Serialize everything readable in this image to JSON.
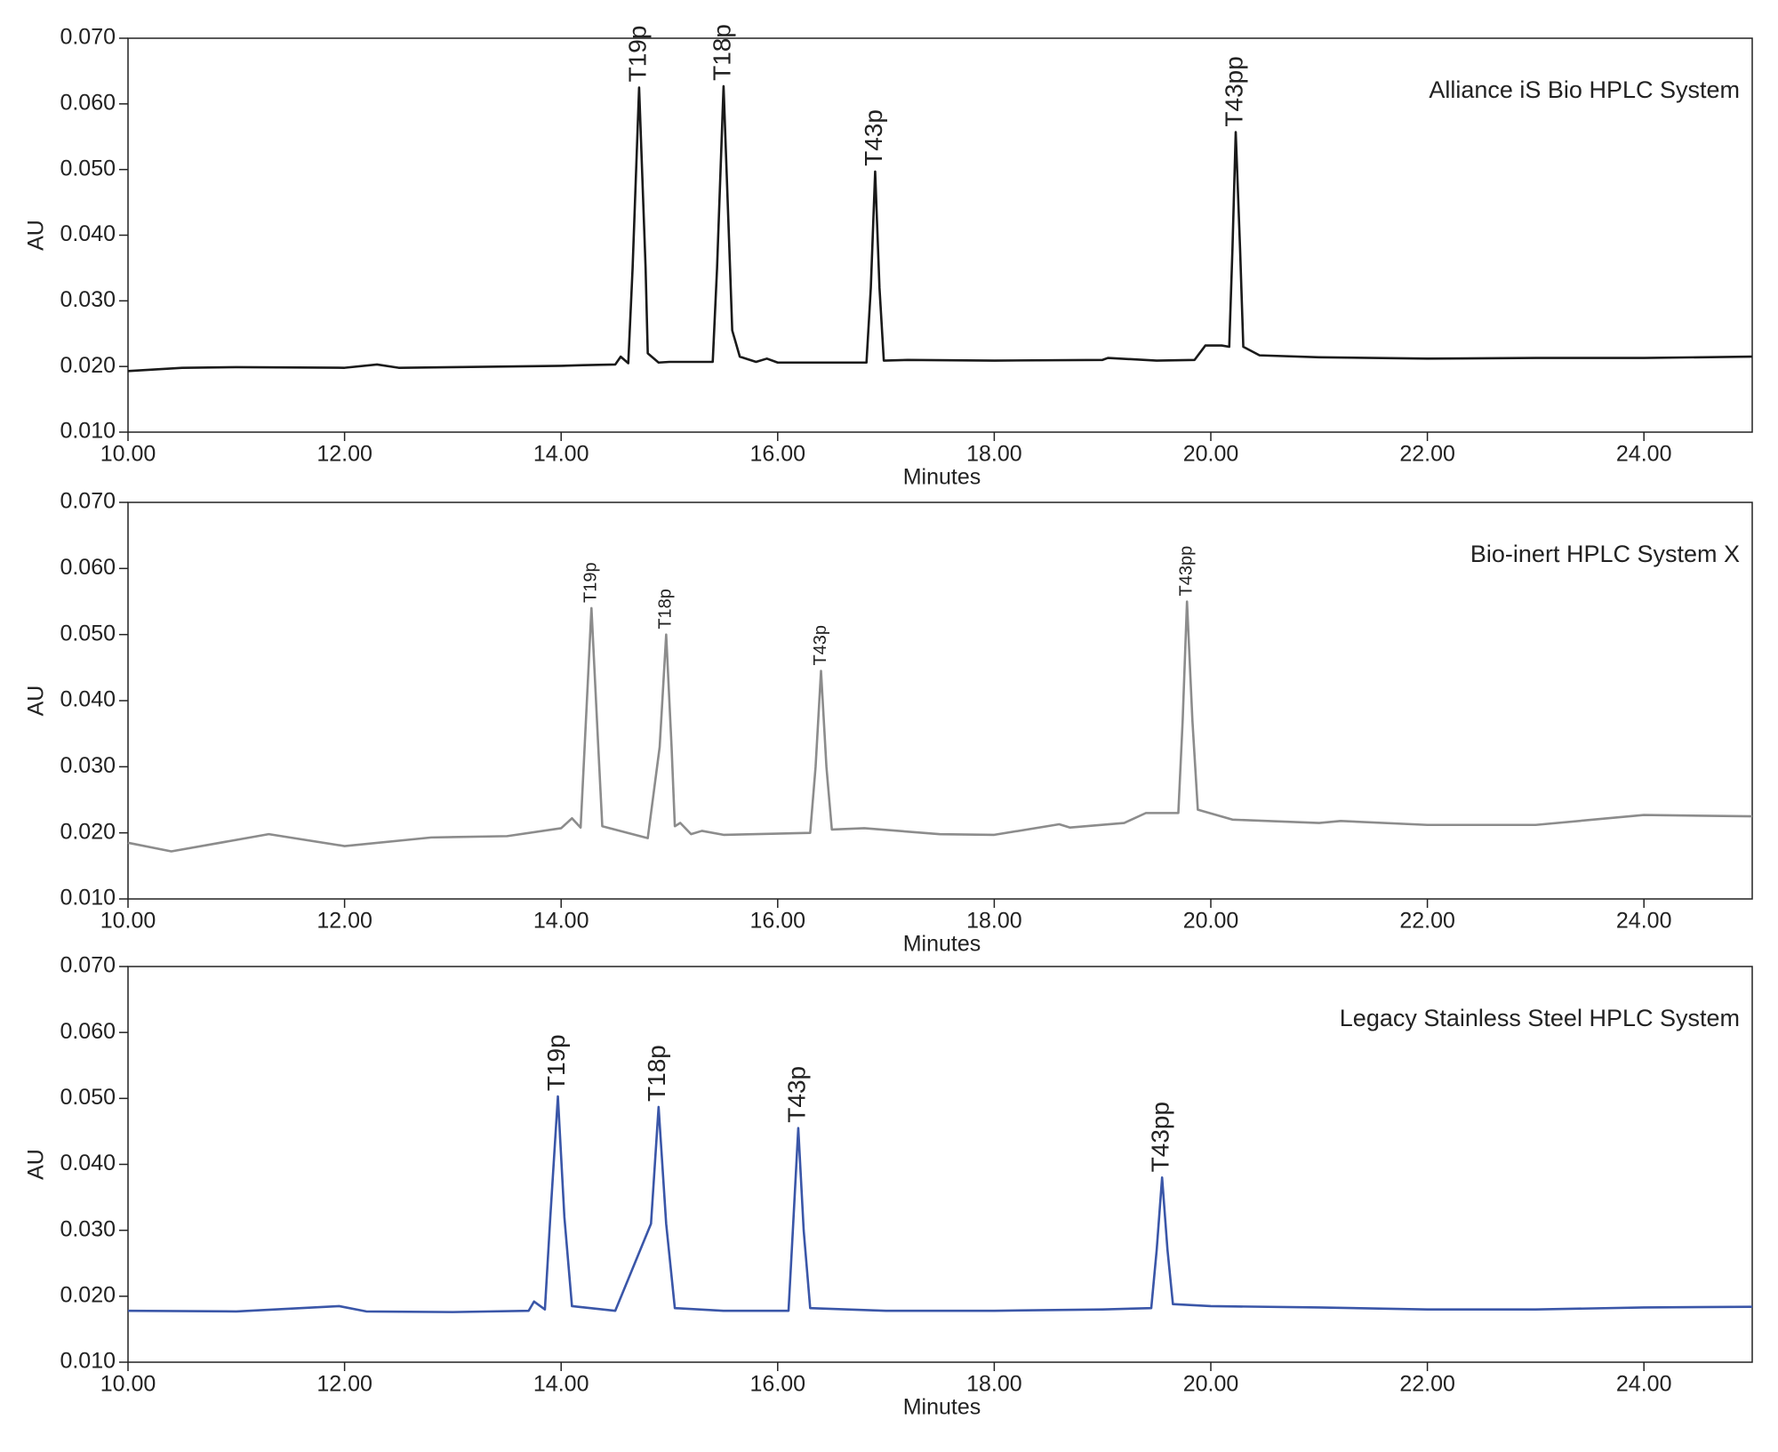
{
  "chart_data": [
    {
      "type": "line",
      "title": "Alliance iS Bio HPLC System",
      "xlabel": "Minutes",
      "ylabel": "AU",
      "color": "#1a1a1a",
      "xlim": [
        10,
        25
      ],
      "ylim": [
        0.01,
        0.07
      ],
      "xticks": [
        {
          "value": 10,
          "label": "10.00"
        },
        {
          "value": 12,
          "label": "12.00"
        },
        {
          "value": 14,
          "label": "14.00"
        },
        {
          "value": 16,
          "label": "16.00"
        },
        {
          "value": 18,
          "label": "18.00"
        },
        {
          "value": 20,
          "label": "20.00"
        },
        {
          "value": 22,
          "label": "22.00"
        },
        {
          "value": 24,
          "label": "24.00"
        }
      ],
      "yticks": [
        {
          "value": 0.01,
          "label": "0.010"
        },
        {
          "value": 0.02,
          "label": "0.020"
        },
        {
          "value": 0.03,
          "label": "0.030"
        },
        {
          "value": 0.04,
          "label": "0.040"
        },
        {
          "value": 0.05,
          "label": "0.050"
        },
        {
          "value": 0.06,
          "label": "0.060"
        },
        {
          "value": 0.07,
          "label": "0.070"
        }
      ],
      "x": [
        10,
        10.5,
        11,
        12,
        12.3,
        12.5,
        13,
        14,
        14.2,
        14.5,
        14.55,
        14.62,
        14.66,
        14.72,
        14.78,
        14.8,
        14.9,
        15,
        15.4,
        15.44,
        15.5,
        15.56,
        15.58,
        15.65,
        15.8,
        15.9,
        16,
        16.5,
        16.82,
        16.86,
        16.9,
        16.94,
        16.98,
        17.2,
        18,
        19,
        19.05,
        19.5,
        19.85,
        19.95,
        20.1,
        20.17,
        20.2,
        20.23,
        20.27,
        20.3,
        20.45,
        21,
        22,
        23,
        24,
        25
      ],
      "values": [
        0.0193,
        0.0198,
        0.0199,
        0.0198,
        0.0203,
        0.0198,
        0.0199,
        0.0201,
        0.0202,
        0.0203,
        0.0215,
        0.0205,
        0.035,
        0.0625,
        0.035,
        0.022,
        0.0206,
        0.0207,
        0.0207,
        0.035,
        0.0627,
        0.035,
        0.0255,
        0.0215,
        0.0207,
        0.0212,
        0.0206,
        0.0206,
        0.0206,
        0.032,
        0.0497,
        0.032,
        0.0209,
        0.021,
        0.0209,
        0.021,
        0.0213,
        0.0209,
        0.021,
        0.0232,
        0.0232,
        0.023,
        0.038,
        0.0557,
        0.038,
        0.023,
        0.0217,
        0.0214,
        0.0212,
        0.0213,
        0.0213,
        0.0215
      ],
      "annotations": [
        {
          "text": "T19p",
          "x": 14.72,
          "y": 0.0625
        },
        {
          "text": "T18p",
          "x": 15.5,
          "y": 0.0627
        },
        {
          "text": "T43p",
          "x": 16.9,
          "y": 0.0497
        },
        {
          "text": "T43pp",
          "x": 20.23,
          "y": 0.0557
        }
      ]
    },
    {
      "type": "line",
      "title": "Bio-inert HPLC System X",
      "xlabel": "Minutes",
      "ylabel": "AU",
      "color": "#8c8c8c",
      "xlim": [
        10,
        25
      ],
      "ylim": [
        0.01,
        0.07
      ],
      "xticks": [
        {
          "value": 10,
          "label": "10.00"
        },
        {
          "value": 12,
          "label": "12.00"
        },
        {
          "value": 14,
          "label": "14.00"
        },
        {
          "value": 16,
          "label": "16.00"
        },
        {
          "value": 18,
          "label": "18.00"
        },
        {
          "value": 20,
          "label": "20.00"
        },
        {
          "value": 22,
          "label": "22.00"
        },
        {
          "value": 24,
          "label": "24.00"
        }
      ],
      "yticks": [
        {
          "value": 0.01,
          "label": "0.010"
        },
        {
          "value": 0.02,
          "label": "0.020"
        },
        {
          "value": 0.03,
          "label": "0.030"
        },
        {
          "value": 0.04,
          "label": "0.040"
        },
        {
          "value": 0.05,
          "label": "0.050"
        },
        {
          "value": 0.06,
          "label": "0.060"
        },
        {
          "value": 0.07,
          "label": "0.070"
        }
      ],
      "x": [
        10,
        10.4,
        11.3,
        12,
        12.8,
        13.5,
        14,
        14.1,
        14.18,
        14.22,
        14.28,
        14.34,
        14.38,
        14.8,
        14.91,
        14.97,
        15.02,
        15.05,
        15.1,
        15.2,
        15.3,
        15.5,
        16.3,
        16.35,
        16.4,
        16.45,
        16.5,
        16.8,
        17.5,
        18,
        18.6,
        18.7,
        19.2,
        19.4,
        19.7,
        19.74,
        19.78,
        19.83,
        19.88,
        20.2,
        21,
        21.2,
        22,
        23,
        24,
        25
      ],
      "values": [
        0.0185,
        0.0172,
        0.0198,
        0.018,
        0.0193,
        0.0195,
        0.0207,
        0.0222,
        0.0208,
        0.034,
        0.054,
        0.034,
        0.021,
        0.0192,
        0.033,
        0.05,
        0.033,
        0.021,
        0.0215,
        0.0198,
        0.0203,
        0.0197,
        0.02,
        0.03,
        0.0445,
        0.03,
        0.0205,
        0.0207,
        0.0198,
        0.0197,
        0.0213,
        0.0208,
        0.0215,
        0.023,
        0.023,
        0.037,
        0.055,
        0.037,
        0.0235,
        0.022,
        0.0215,
        0.0218,
        0.0212,
        0.0212,
        0.0227,
        0.0225
      ],
      "annotations": [
        {
          "text": "T19p",
          "x": 14.28,
          "y": 0.054
        },
        {
          "text": "T18p",
          "x": 14.97,
          "y": 0.05
        },
        {
          "text": "T43p",
          "x": 16.4,
          "y": 0.0445
        },
        {
          "text": "T43pp",
          "x": 19.78,
          "y": 0.055
        }
      ]
    },
    {
      "type": "line",
      "title": "Legacy Stainless Steel HPLC System",
      "xlabel": "Minutes",
      "ylabel": "AU",
      "color": "#3a56a8",
      "xlim": [
        10,
        25
      ],
      "ylim": [
        0.01,
        0.07
      ],
      "xticks": [
        {
          "value": 10,
          "label": "10.00"
        },
        {
          "value": 12,
          "label": "12.00"
        },
        {
          "value": 14,
          "label": "14.00"
        },
        {
          "value": 16,
          "label": "16.00"
        },
        {
          "value": 18,
          "label": "18.00"
        },
        {
          "value": 20,
          "label": "20.00"
        },
        {
          "value": 22,
          "label": "22.00"
        },
        {
          "value": 24,
          "label": "24.00"
        }
      ],
      "yticks": [
        {
          "value": 0.01,
          "label": "0.010"
        },
        {
          "value": 0.02,
          "label": "0.020"
        },
        {
          "value": 0.03,
          "label": "0.030"
        },
        {
          "value": 0.04,
          "label": "0.040"
        },
        {
          "value": 0.05,
          "label": "0.050"
        },
        {
          "value": 0.06,
          "label": "0.060"
        },
        {
          "value": 0.07,
          "label": "0.070"
        }
      ],
      "x": [
        10,
        11,
        11.95,
        12.2,
        13,
        13.7,
        13.75,
        13.85,
        13.9,
        13.97,
        14.03,
        14.1,
        14.5,
        14.83,
        14.9,
        14.97,
        15.05,
        15.5,
        16.1,
        16.14,
        16.19,
        16.24,
        16.3,
        17,
        18,
        19,
        19.45,
        19.5,
        19.55,
        19.6,
        19.65,
        20,
        21,
        22,
        23,
        24,
        25
      ],
      "values": [
        0.0178,
        0.0177,
        0.0185,
        0.0177,
        0.0176,
        0.0178,
        0.0192,
        0.018,
        0.032,
        0.0503,
        0.032,
        0.0185,
        0.0178,
        0.031,
        0.0487,
        0.031,
        0.0182,
        0.0178,
        0.0178,
        0.03,
        0.0455,
        0.03,
        0.0182,
        0.0178,
        0.0178,
        0.018,
        0.0182,
        0.027,
        0.038,
        0.027,
        0.0188,
        0.0185,
        0.0183,
        0.018,
        0.018,
        0.0183,
        0.0184
      ],
      "annotations": [
        {
          "text": "T19p",
          "x": 13.97,
          "y": 0.0503
        },
        {
          "text": "T18p",
          "x": 14.9,
          "y": 0.0487
        },
        {
          "text": "T43p",
          "x": 16.19,
          "y": 0.0455
        },
        {
          "text": "T43pp",
          "x": 19.55,
          "y": 0.038
        }
      ]
    }
  ]
}
